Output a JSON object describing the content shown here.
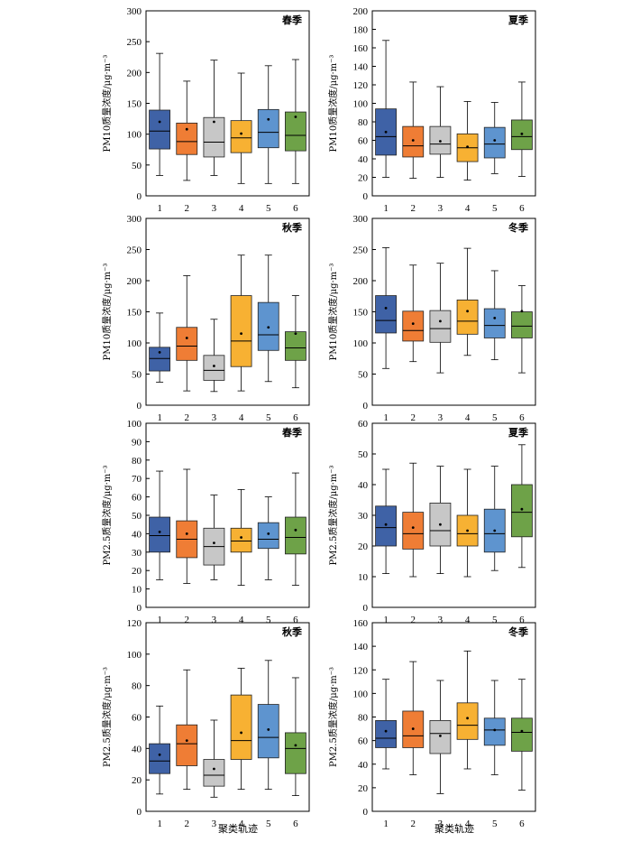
{
  "x_axis_label": "聚类轨迹",
  "colors": [
    "#3f62a6",
    "#ef7d35",
    "#c7c7c7",
    "#f7b133",
    "#5e94cf",
    "#6ea248"
  ],
  "chart_data": [
    {
      "type": "box",
      "title": "春季",
      "ylabel": "PM10质量浓度/μg·m⁻³",
      "categories": [
        "1",
        "2",
        "3",
        "4",
        "5",
        "6"
      ],
      "ylim": [
        0,
        300
      ],
      "yticks": [
        "0",
        "50",
        "100",
        "150",
        "200",
        "250",
        "300"
      ],
      "boxes": [
        {
          "min": 33,
          "q1": 76,
          "median": 105,
          "q3": 139,
          "max": 231,
          "mean": 120
        },
        {
          "min": 25,
          "q1": 67,
          "median": 88,
          "q3": 118,
          "max": 186,
          "mean": 108
        },
        {
          "min": 33,
          "q1": 63,
          "median": 87,
          "q3": 127,
          "max": 220,
          "mean": 120
        },
        {
          "min": 20,
          "q1": 70,
          "median": 94,
          "q3": 122,
          "max": 199,
          "mean": 101
        },
        {
          "min": 20,
          "q1": 78,
          "median": 103,
          "q3": 140,
          "max": 211,
          "mean": 124
        },
        {
          "min": 20,
          "q1": 73,
          "median": 98,
          "q3": 136,
          "max": 221,
          "mean": 128
        }
      ]
    },
    {
      "type": "box",
      "title": "夏季",
      "ylabel": "PM10质量浓度/μg·m⁻³",
      "categories": [
        "1",
        "2",
        "3",
        "4",
        "5",
        "6"
      ],
      "ylim": [
        0,
        200
      ],
      "yticks": [
        "0",
        "20",
        "40",
        "60",
        "80",
        "100",
        "120",
        "140",
        "160",
        "180",
        "200"
      ],
      "boxes": [
        {
          "min": 20,
          "q1": 44,
          "median": 64,
          "q3": 94,
          "max": 168,
          "mean": 69
        },
        {
          "min": 19,
          "q1": 42,
          "median": 54,
          "q3": 75,
          "max": 123,
          "mean": 60
        },
        {
          "min": 20,
          "q1": 45,
          "median": 56,
          "q3": 75,
          "max": 118,
          "mean": 59
        },
        {
          "min": 17,
          "q1": 37,
          "median": 52,
          "q3": 67,
          "max": 102,
          "mean": 53
        },
        {
          "min": 24,
          "q1": 41,
          "median": 56,
          "q3": 74,
          "max": 101,
          "mean": 60
        },
        {
          "min": 21,
          "q1": 50,
          "median": 64,
          "q3": 82,
          "max": 123,
          "mean": 67
        }
      ]
    },
    {
      "type": "box",
      "title": "秋季",
      "ylabel": "PM10质量浓度/μg·m⁻³",
      "categories": [
        "1",
        "2",
        "3",
        "4",
        "5",
        "6"
      ],
      "ylim": [
        0,
        300
      ],
      "yticks": [
        "0",
        "50",
        "100",
        "150",
        "200",
        "250",
        "300"
      ],
      "boxes": [
        {
          "min": 37,
          "q1": 55,
          "median": 75,
          "q3": 93,
          "max": 148,
          "mean": 85
        },
        {
          "min": 23,
          "q1": 72,
          "median": 95,
          "q3": 125,
          "max": 208,
          "mean": 108
        },
        {
          "min": 22,
          "q1": 40,
          "median": 56,
          "q3": 80,
          "max": 138,
          "mean": 63
        },
        {
          "min": 23,
          "q1": 62,
          "median": 103,
          "q3": 176,
          "max": 241,
          "mean": 115
        },
        {
          "min": 38,
          "q1": 88,
          "median": 113,
          "q3": 165,
          "max": 241,
          "mean": 125
        },
        {
          "min": 28,
          "q1": 72,
          "median": 92,
          "q3": 118,
          "max": 176,
          "mean": 115
        }
      ]
    },
    {
      "type": "box",
      "title": "冬季",
      "ylabel": "PM10质量浓度/μg·m⁻³",
      "categories": [
        "1",
        "2",
        "3",
        "4",
        "5",
        "6"
      ],
      "ylim": [
        0,
        300
      ],
      "yticks": [
        "0",
        "50",
        "100",
        "150",
        "200",
        "250",
        "300"
      ],
      "boxes": [
        {
          "min": 59,
          "q1": 116,
          "median": 136,
          "q3": 176,
          "max": 253,
          "mean": 156
        },
        {
          "min": 70,
          "q1": 103,
          "median": 120,
          "q3": 151,
          "max": 225,
          "mean": 131
        },
        {
          "min": 52,
          "q1": 101,
          "median": 123,
          "q3": 152,
          "max": 228,
          "mean": 135
        },
        {
          "min": 80,
          "q1": 114,
          "median": 135,
          "q3": 169,
          "max": 252,
          "mean": 151
        },
        {
          "min": 73,
          "q1": 108,
          "median": 128,
          "q3": 155,
          "max": 216,
          "mean": 140
        },
        {
          "min": 52,
          "q1": 108,
          "median": 127,
          "q3": 150,
          "max": 192,
          "mean": 151
        }
      ]
    },
    {
      "type": "box",
      "title": "春季",
      "ylabel": "PM2.5质量浓度/μg·m⁻³",
      "categories": [
        "1",
        "2",
        "3",
        "4",
        "5",
        "6"
      ],
      "ylim": [
        0,
        100
      ],
      "yticks": [
        "0",
        "10",
        "20",
        "30",
        "40",
        "50",
        "60",
        "70",
        "80",
        "90",
        "100"
      ],
      "boxes": [
        {
          "min": 15,
          "q1": 30,
          "median": 39,
          "q3": 49,
          "max": 74,
          "mean": 41
        },
        {
          "min": 13,
          "q1": 27,
          "median": 37,
          "q3": 47,
          "max": 75,
          "mean": 40
        },
        {
          "min": 15,
          "q1": 23,
          "median": 33,
          "q3": 43,
          "max": 61,
          "mean": 35
        },
        {
          "min": 12,
          "q1": 30,
          "median": 36,
          "q3": 43,
          "max": 64,
          "mean": 38
        },
        {
          "min": 15,
          "q1": 32,
          "median": 37,
          "q3": 46,
          "max": 60,
          "mean": 40
        },
        {
          "min": 12,
          "q1": 29,
          "median": 38,
          "q3": 49,
          "max": 73,
          "mean": 42
        }
      ]
    },
    {
      "type": "box",
      "title": "夏季",
      "ylabel": "PM2.5质量浓度/μg·m⁻³",
      "categories": [
        "1",
        "2",
        "3",
        "4",
        "5",
        "6"
      ],
      "ylim": [
        0,
        60
      ],
      "yticks": [
        "0",
        "10",
        "20",
        "30",
        "40",
        "50",
        "60"
      ],
      "boxes": [
        {
          "min": 11,
          "q1": 20,
          "median": 26,
          "q3": 33,
          "max": 45,
          "mean": 27
        },
        {
          "min": 10,
          "q1": 19,
          "median": 24,
          "q3": 31,
          "max": 47,
          "mean": 26
        },
        {
          "min": 11,
          "q1": 20,
          "median": 25,
          "q3": 34,
          "max": 46,
          "mean": 27
        },
        {
          "min": 10,
          "q1": 20,
          "median": 24,
          "q3": 30,
          "max": 45,
          "mean": 25
        },
        {
          "min": 12,
          "q1": 18,
          "median": 24,
          "q3": 32,
          "max": 46,
          "mean": 25
        },
        {
          "min": 13,
          "q1": 23,
          "median": 31,
          "q3": 40,
          "max": 53,
          "mean": 32
        }
      ]
    },
    {
      "type": "box",
      "title": "秋季",
      "ylabel": "PM2.5质量浓度/μg·m⁻³",
      "categories": [
        "1",
        "2",
        "3",
        "4",
        "5",
        "6"
      ],
      "ylim": [
        0,
        120
      ],
      "yticks": [
        "0",
        "20",
        "40",
        "60",
        "80",
        "100",
        "120"
      ],
      "boxes": [
        {
          "min": 11,
          "q1": 24,
          "median": 32,
          "q3": 43,
          "max": 67,
          "mean": 36
        },
        {
          "min": 14,
          "q1": 29,
          "median": 43,
          "q3": 55,
          "max": 90,
          "mean": 45
        },
        {
          "min": 9,
          "q1": 16,
          "median": 23,
          "q3": 33,
          "max": 58,
          "mean": 27
        },
        {
          "min": 14,
          "q1": 33,
          "median": 45,
          "q3": 74,
          "max": 91,
          "mean": 50
        },
        {
          "min": 14,
          "q1": 34,
          "median": 47,
          "q3": 68,
          "max": 96,
          "mean": 52
        },
        {
          "min": 10,
          "q1": 24,
          "median": 40,
          "q3": 50,
          "max": 85,
          "mean": 42
        }
      ]
    },
    {
      "type": "box",
      "title": "冬季",
      "ylabel": "PM2.5质量浓度/μg·m⁻³",
      "categories": [
        "1",
        "2",
        "3",
        "4",
        "5",
        "6"
      ],
      "ylim": [
        0,
        160
      ],
      "yticks": [
        "0",
        "20",
        "40",
        "60",
        "80",
        "100",
        "120",
        "140",
        "160"
      ],
      "boxes": [
        {
          "min": 36,
          "q1": 54,
          "median": 62,
          "q3": 77,
          "max": 112,
          "mean": 68
        },
        {
          "min": 31,
          "q1": 54,
          "median": 64,
          "q3": 85,
          "max": 127,
          "mean": 70
        },
        {
          "min": 15,
          "q1": 49,
          "median": 66,
          "q3": 77,
          "max": 111,
          "mean": 64
        },
        {
          "min": 36,
          "q1": 61,
          "median": 73,
          "q3": 92,
          "max": 136,
          "mean": 79
        },
        {
          "min": 31,
          "q1": 56,
          "median": 69,
          "q3": 79,
          "max": 111,
          "mean": 69
        },
        {
          "min": 18,
          "q1": 51,
          "median": 67,
          "q3": 79,
          "max": 112,
          "mean": 68
        }
      ]
    }
  ]
}
